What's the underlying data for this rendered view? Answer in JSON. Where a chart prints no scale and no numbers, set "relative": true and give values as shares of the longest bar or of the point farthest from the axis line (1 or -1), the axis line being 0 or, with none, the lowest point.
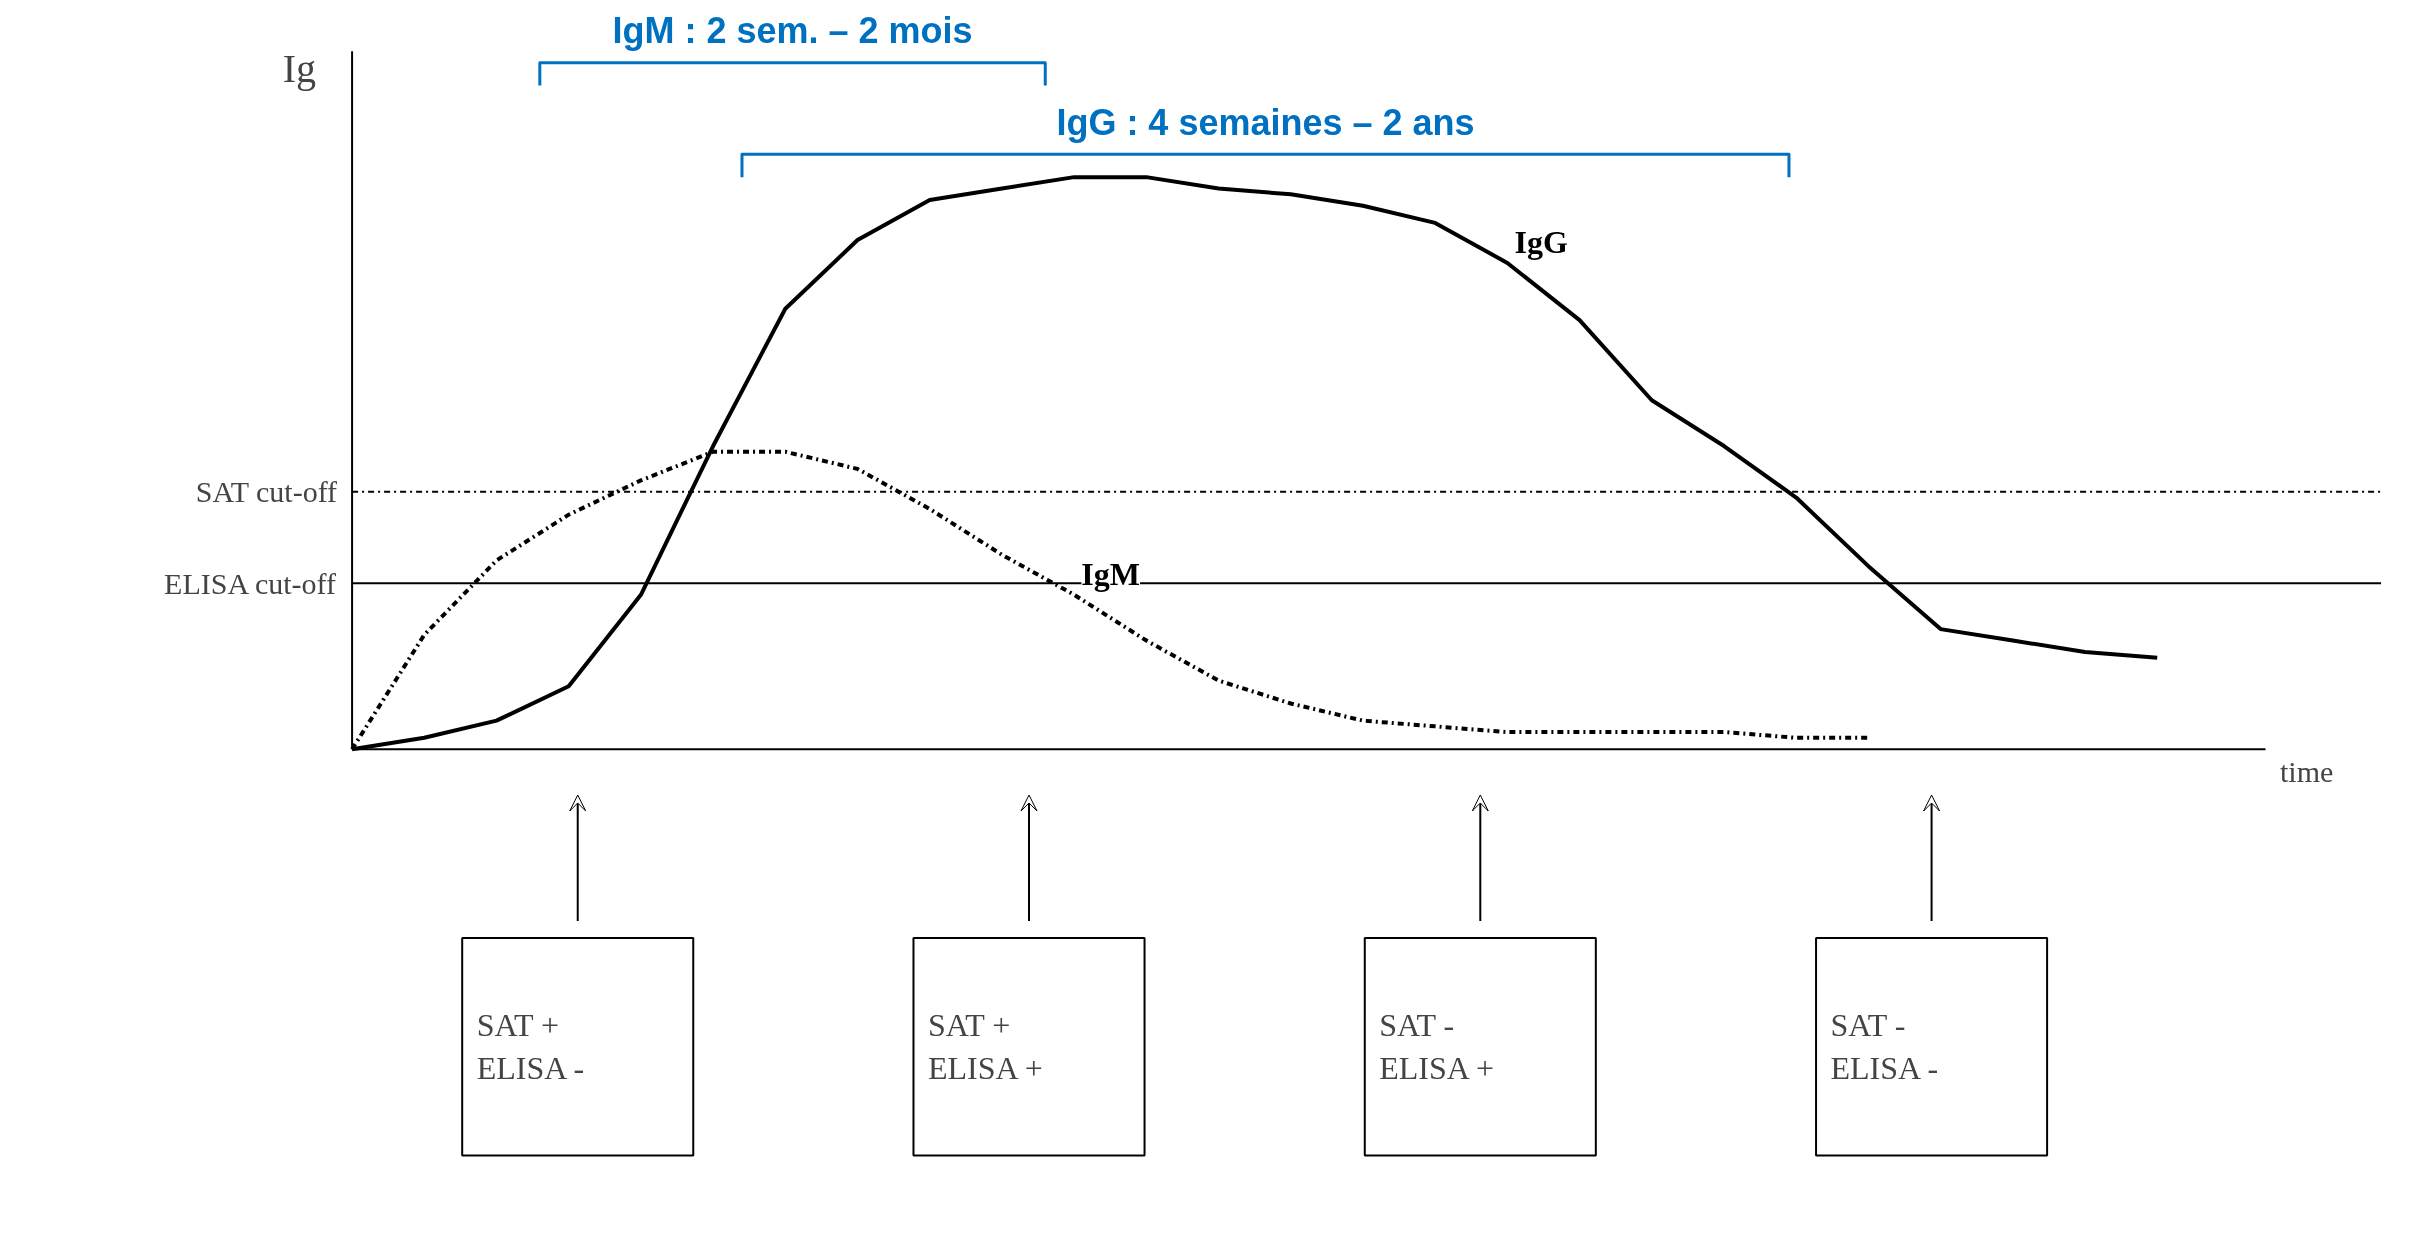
{
  "chart_data": {
    "type": "line",
    "relative": true,
    "ylabel": "Ig",
    "xlabel": "time",
    "categories": [
      null,
      null,
      null,
      null,
      null,
      null,
      null,
      null,
      null,
      null,
      null,
      null,
      null,
      null,
      null,
      null,
      null,
      null,
      null,
      null,
      null,
      null,
      null,
      null,
      null,
      null
    ],
    "series": [
      {
        "name": "IgG",
        "color": "#000000",
        "line_style": "solid",
        "values": [
          0,
          0.02,
          0.05,
          0.11,
          0.27,
          0.53,
          0.77,
          0.89,
          0.96,
          0.98,
          1.0,
          1.0,
          0.98,
          0.97,
          0.95,
          0.92,
          0.85,
          0.75,
          0.61,
          0.53,
          0.44,
          0.32,
          0.21,
          0.19,
          0.17,
          0.16
        ]
      },
      {
        "name": "IgM",
        "color": "#000000",
        "line_style": "dashed",
        "values": [
          0,
          0.2,
          0.33,
          0.41,
          0.47,
          0.52,
          0.52,
          0.49,
          0.42,
          0.34,
          0.27,
          0.19,
          0.12,
          0.08,
          0.05,
          0.04,
          0.03,
          0.03,
          0.03,
          0.03,
          0.02,
          0.02,
          null,
          null,
          null,
          null
        ]
      }
    ],
    "ref_lines": [
      {
        "axis": "y",
        "value": 0.45,
        "label": "SAT cut-off",
        "color": "#000000",
        "line_style": "dashed"
      },
      {
        "axis": "y",
        "value": 0.29,
        "label": "ELISA cut-off",
        "color": "#000000",
        "line_style": "solid"
      }
    ],
    "annotations": [
      "IgM : 2 sem. – 2 mois",
      "IgG : 4 semaines – 2 ans",
      "SAT +\nELISA -",
      "SAT +\nELISA +",
      "SAT -\nELISA +",
      "SAT -\nELISA -"
    ],
    "grid": false,
    "marker": "none"
  }
}
